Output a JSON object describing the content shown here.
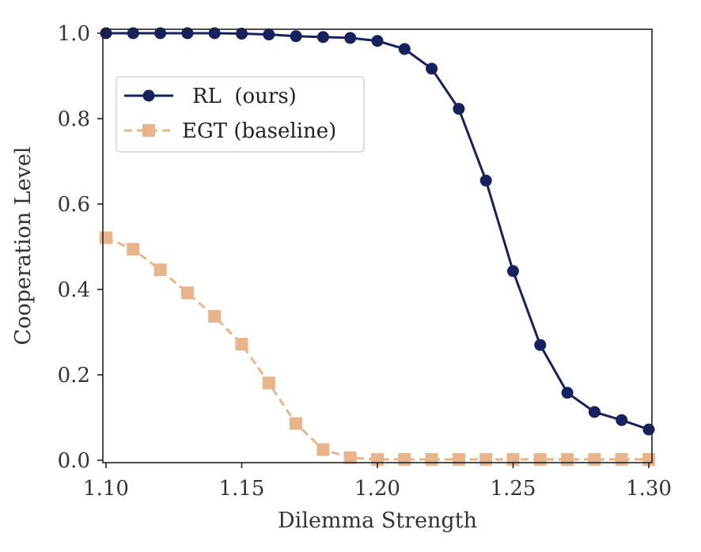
{
  "chart_data": {
    "type": "line",
    "xlabel": "Dilemma Strength",
    "ylabel": "Cooperation Level",
    "xlim": [
      1.1,
      1.3
    ],
    "ylim": [
      0.0,
      1.0
    ],
    "xticks": [
      "1.10",
      "1.15",
      "1.20",
      "1.25",
      "1.30"
    ],
    "yticks": [
      "0.0",
      "0.2",
      "0.4",
      "0.6",
      "0.8",
      "1.0"
    ],
    "grid": false,
    "legend_position": "upper-left",
    "x": [
      1.1,
      1.11,
      1.12,
      1.13,
      1.14,
      1.15,
      1.16,
      1.17,
      1.18,
      1.19,
      1.2,
      1.21,
      1.22,
      1.23,
      1.24,
      1.25,
      1.26,
      1.27,
      1.28,
      1.29,
      1.3
    ],
    "series": [
      {
        "name": "RL  (ours)",
        "color": "#16215e",
        "marker": "circle",
        "linestyle": "solid",
        "values": [
          1.0,
          1.0,
          1.0,
          1.0,
          1.0,
          0.999,
          0.997,
          0.993,
          0.991,
          0.989,
          0.982,
          0.963,
          0.917,
          0.823,
          0.655,
          0.443,
          0.27,
          0.158,
          0.113,
          0.094,
          0.072
        ]
      },
      {
        "name": "EGT (baseline)",
        "color": "#e8b48a",
        "marker": "square",
        "linestyle": "dashed",
        "values": [
          0.521,
          0.494,
          0.446,
          0.392,
          0.337,
          0.272,
          0.181,
          0.086,
          0.025,
          0.006,
          0.002,
          0.002,
          0.002,
          0.002,
          0.002,
          0.002,
          0.002,
          0.002,
          0.002,
          0.002,
          0.002
        ]
      }
    ]
  }
}
